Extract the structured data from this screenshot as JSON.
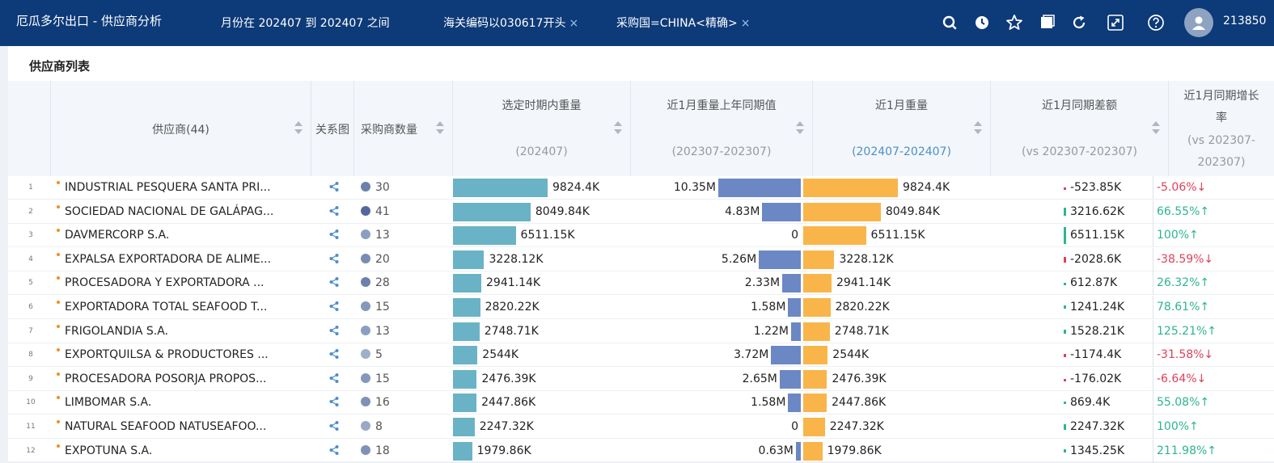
{
  "header": {
    "title": "厄瓜多尔出口 - 供应商分析",
    "filters": [
      {
        "label": "月份在 202407 到 202407 之间",
        "removable": false
      },
      {
        "label": "海关编码以030617开头",
        "removable": true
      },
      {
        "label": "采购国=CHINA<精确>",
        "removable": true
      }
    ],
    "close_glyph": "×",
    "icons": [
      "search-icon",
      "clock-icon",
      "star-icon",
      "window-icon",
      "refresh-icon",
      "fullscreen-icon",
      "help-icon"
    ],
    "user_id": "213850"
  },
  "panel": {
    "title": "供应商列表"
  },
  "columns": {
    "supplier": "供应商(44)",
    "graph": "关系图",
    "buyers": "采购商数量",
    "weight": {
      "label": "选定时期内重量",
      "sub": "(202407)"
    },
    "last_year": {
      "label": "近1月重量上年同期值",
      "sub": "(202307-202307)"
    },
    "recent": {
      "label": "近1月重量",
      "sub": "(202407-202407)"
    },
    "diff": {
      "label": "近1月同期差额",
      "sub": "(vs 202307-202307)"
    },
    "rate": {
      "label_line1": "近1月同期增长",
      "label_line2": "率",
      "sub_line1": "(vs 202307-",
      "sub_line2": "202307)"
    }
  },
  "colors": {
    "weight_bar": "#6ab3c6",
    "last_year_bar": "#6b88c4",
    "recent_bar": "#f9b54a",
    "up": "#2db58e",
    "down": "#e0405a"
  },
  "rows": [
    {
      "n": "1",
      "supplier": "INDUSTRIAL PESQUERA SANTA PRI...",
      "buyers": "30",
      "shade": 0.6,
      "weight": 9824.4,
      "weight_label": "9824.4K",
      "ly": 10.35,
      "ly_label": "10.35M",
      "recent": 9824.4,
      "recent_label": "9824.4K",
      "diff": -523.85,
      "diff_label": "-523.85K",
      "rate": "-5.06%↓",
      "dir": "down"
    },
    {
      "n": "2",
      "supplier": "SOCIEDAD NACIONAL DE GALÁPAG...",
      "buyers": "41",
      "shade": 0.8,
      "weight": 8049.84,
      "weight_label": "8049.84K",
      "ly": 4.83,
      "ly_label": "4.83M",
      "recent": 8049.84,
      "recent_label": "8049.84K",
      "diff": 3216.62,
      "diff_label": "3216.62K",
      "rate": "66.55%↑",
      "dir": "up"
    },
    {
      "n": "3",
      "supplier": "DAVMERCORP S.A.",
      "buyers": "13",
      "shade": 0.35,
      "weight": 6511.15,
      "weight_label": "6511.15K",
      "ly": 0,
      "ly_label": "0",
      "recent": 6511.15,
      "recent_label": "6511.15K",
      "diff": 6511.15,
      "diff_label": "6511.15K",
      "rate": "100%↑",
      "dir": "up"
    },
    {
      "n": "4",
      "supplier": "EXPALSA EXPORTADORA DE ALIME...",
      "buyers": "20",
      "shade": 0.5,
      "weight": 3228.12,
      "weight_label": "3228.12K",
      "ly": 5.26,
      "ly_label": "5.26M",
      "recent": 3228.12,
      "recent_label": "3228.12K",
      "diff": -2028.6,
      "diff_label": "-2028.6K",
      "rate": "-38.59%↓",
      "dir": "down"
    },
    {
      "n": "5",
      "supplier": "PROCESADORA Y EXPORTADORA ...",
      "buyers": "28",
      "shade": 0.6,
      "weight": 2941.14,
      "weight_label": "2941.14K",
      "ly": 2.33,
      "ly_label": "2.33M",
      "recent": 2941.14,
      "recent_label": "2941.14K",
      "diff": 612.87,
      "diff_label": "612.87K",
      "rate": "26.32%↑",
      "dir": "up"
    },
    {
      "n": "6",
      "supplier": "EXPORTADORA TOTAL SEAFOOD T...",
      "buyers": "15",
      "shade": 0.4,
      "weight": 2820.22,
      "weight_label": "2820.22K",
      "ly": 1.58,
      "ly_label": "1.58M",
      "recent": 2820.22,
      "recent_label": "2820.22K",
      "diff": 1241.24,
      "diff_label": "1241.24K",
      "rate": "78.61%↑",
      "dir": "up"
    },
    {
      "n": "7",
      "supplier": "FRIGOLANDIA S.A.",
      "buyers": "13",
      "shade": 0.35,
      "weight": 2748.71,
      "weight_label": "2748.71K",
      "ly": 1.22,
      "ly_label": "1.22M",
      "recent": 2748.71,
      "recent_label": "2748.71K",
      "diff": 1528.21,
      "diff_label": "1528.21K",
      "rate": "125.21%↑",
      "dir": "up"
    },
    {
      "n": "8",
      "supplier": "EXPORTQUILSA & PRODUCTORES ...",
      "buyers": "5",
      "shade": 0.2,
      "weight": 2544,
      "weight_label": "2544K",
      "ly": 3.72,
      "ly_label": "3.72M",
      "recent": 2544,
      "recent_label": "2544K",
      "diff": -1174.4,
      "diff_label": "-1174.4K",
      "rate": "-31.58%↓",
      "dir": "down"
    },
    {
      "n": "9",
      "supplier": "PROCESADORA POSORJA PROPOS...",
      "buyers": "15",
      "shade": 0.4,
      "weight": 2476.39,
      "weight_label": "2476.39K",
      "ly": 2.65,
      "ly_label": "2.65M",
      "recent": 2476.39,
      "recent_label": "2476.39K",
      "diff": -176.02,
      "diff_label": "-176.02K",
      "rate": "-6.64%↓",
      "dir": "down"
    },
    {
      "n": "10",
      "supplier": "LIMBOMAR S.A.",
      "buyers": "16",
      "shade": 0.45,
      "weight": 2447.86,
      "weight_label": "2447.86K",
      "ly": 1.58,
      "ly_label": "1.58M",
      "recent": 2447.86,
      "recent_label": "2447.86K",
      "diff": 869.4,
      "diff_label": "869.4K",
      "rate": "55.08%↑",
      "dir": "up"
    },
    {
      "n": "11",
      "supplier": "NATURAL SEAFOOD NATUSEAFOO...",
      "buyers": "8",
      "shade": 0.25,
      "weight": 2247.32,
      "weight_label": "2247.32K",
      "ly": 0,
      "ly_label": "0",
      "recent": 2247.32,
      "recent_label": "2247.32K",
      "diff": 2247.32,
      "diff_label": "2247.32K",
      "rate": "100%↑",
      "dir": "up"
    },
    {
      "n": "12",
      "supplier": "EXPOTUNA S.A.",
      "buyers": "18",
      "shade": 0.45,
      "weight": 1979.86,
      "weight_label": "1979.86K",
      "ly": 0.63,
      "ly_label": "0.63M",
      "recent": 1979.86,
      "recent_label": "1979.86K",
      "diff": 1345.25,
      "diff_label": "1345.25K",
      "rate": "211.98%↑",
      "dir": "up"
    }
  ]
}
